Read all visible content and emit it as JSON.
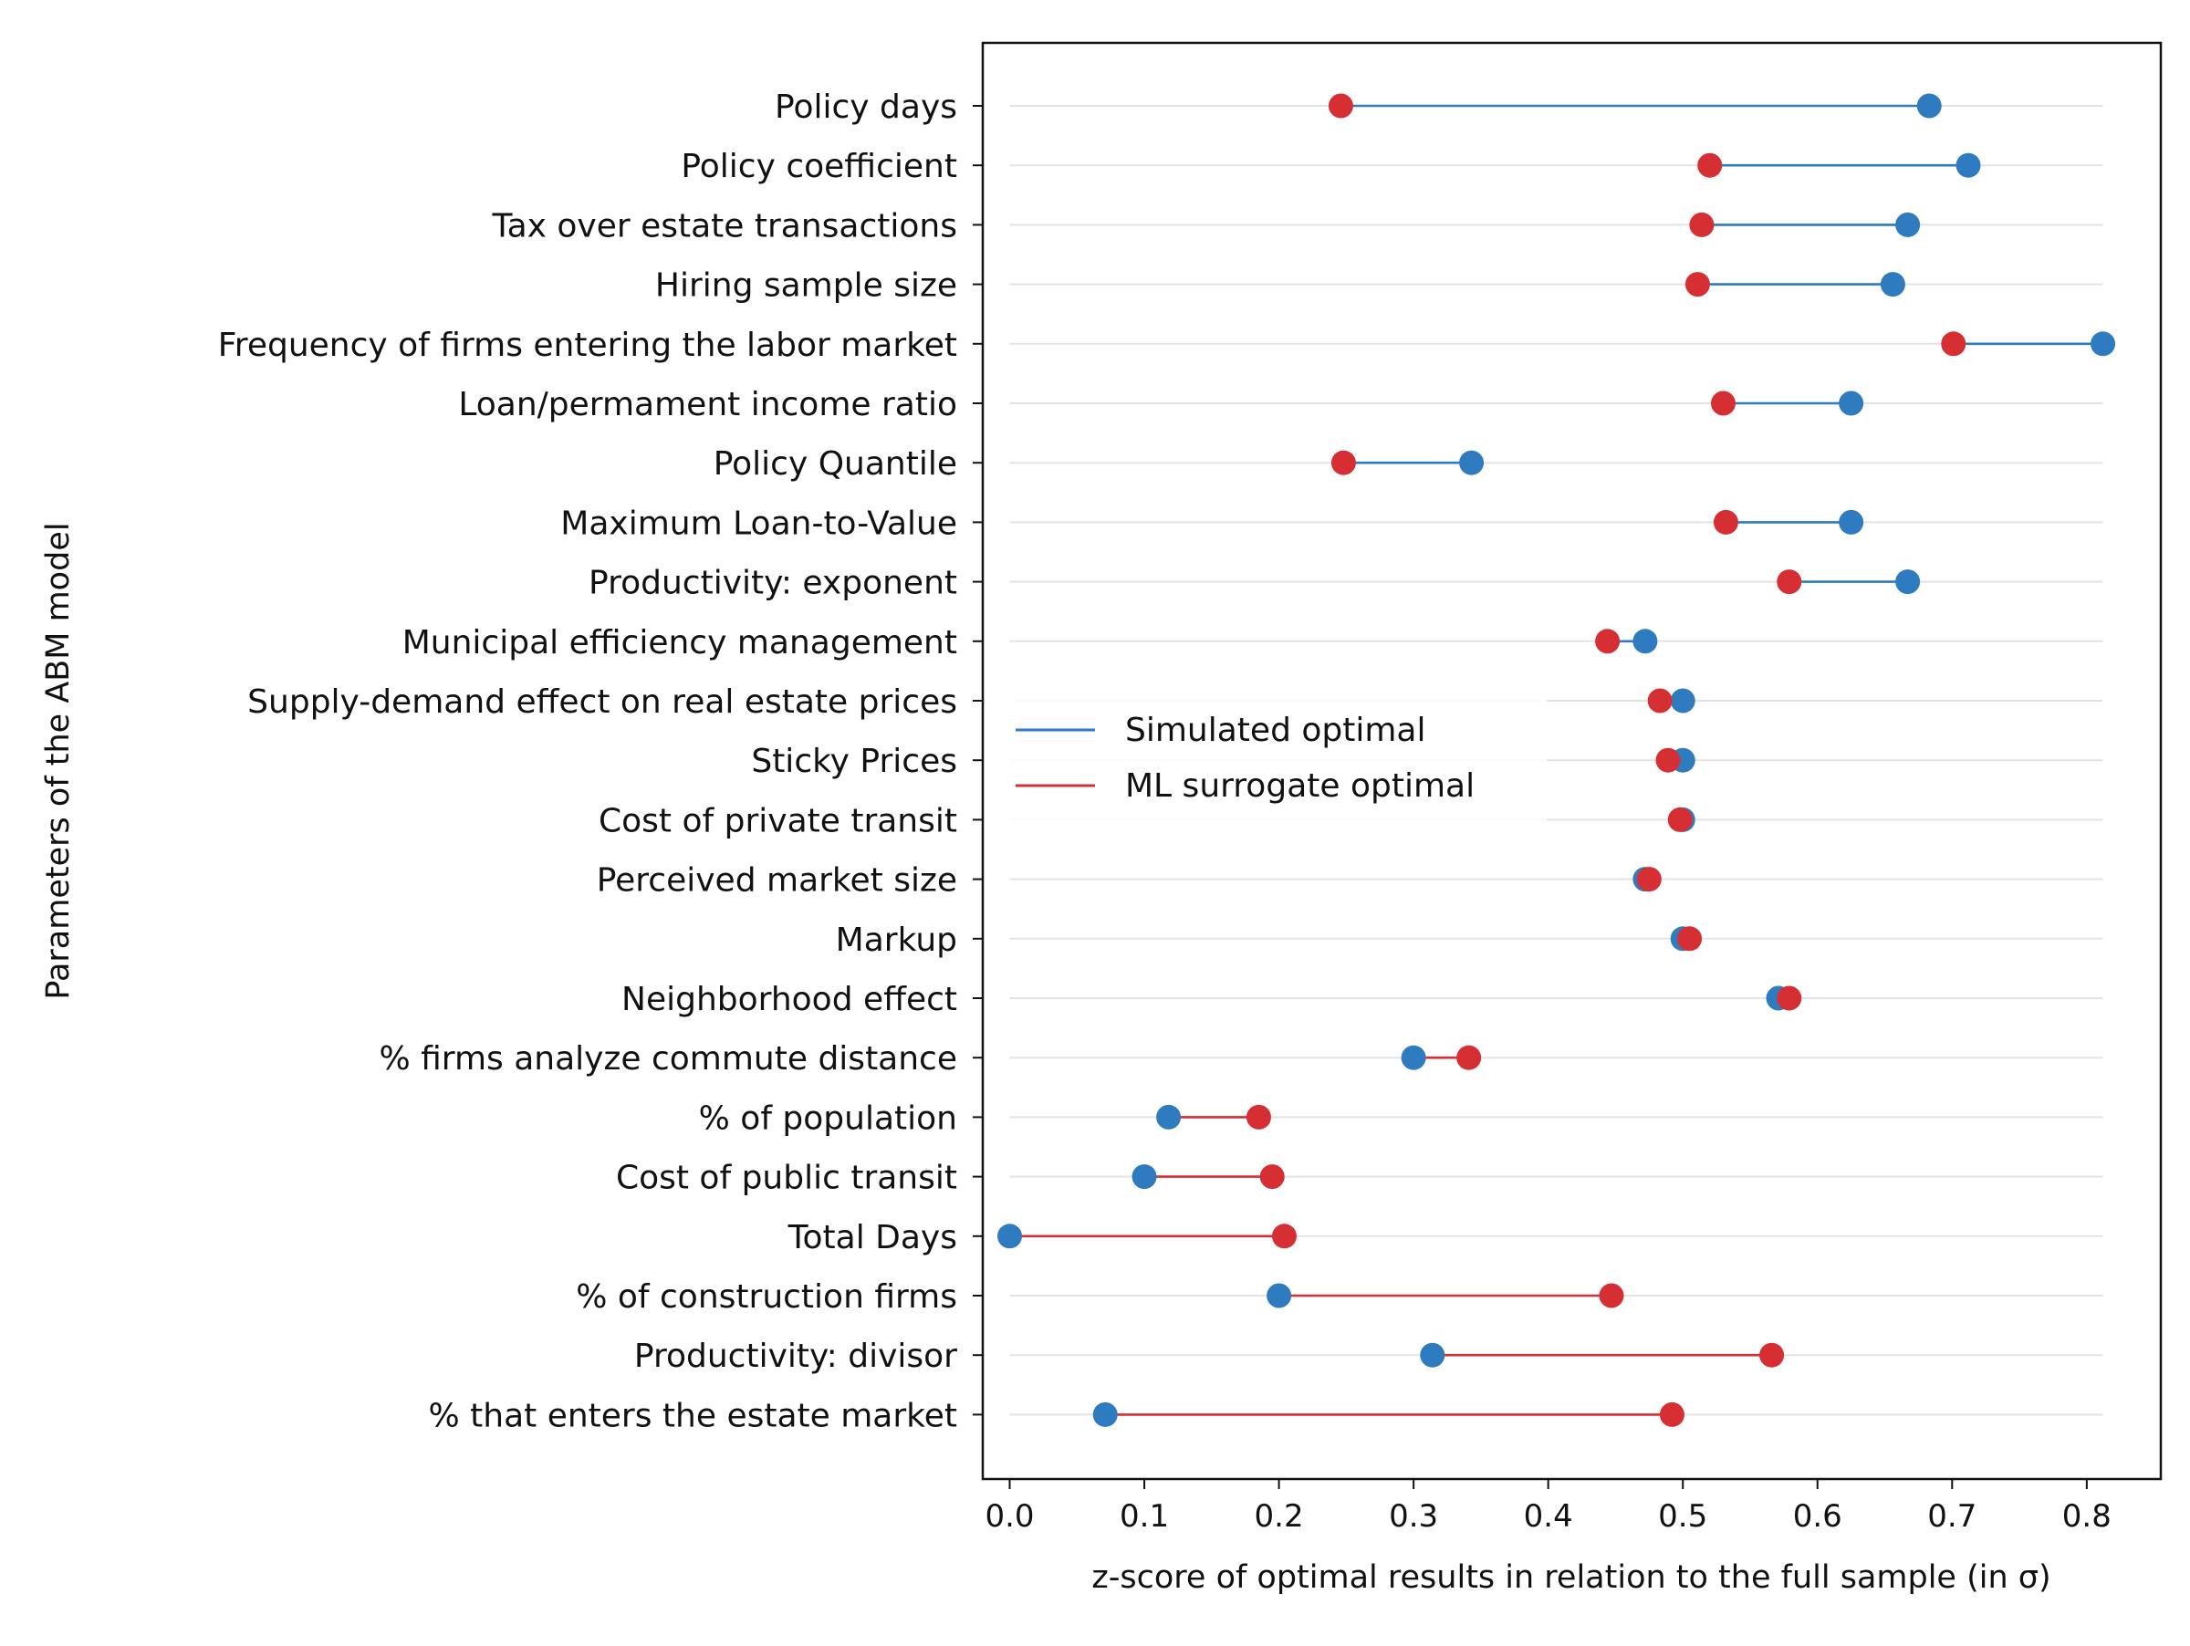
{
  "chart_data": {
    "type": "dumbbell",
    "xlabel": "z-score of optimal results in relation to the full sample (in σ)",
    "ylabel": "Parameters of the ABM model",
    "xlim": [
      -0.02,
      0.855
    ],
    "xticks": [
      0.0,
      0.1,
      0.2,
      0.3,
      0.4,
      0.5,
      0.6,
      0.7,
      0.8
    ],
    "xtick_labels": [
      "0.0",
      "0.1",
      "0.2",
      "0.3",
      "0.4",
      "0.5",
      "0.6",
      "0.7",
      "0.8"
    ],
    "grid": "horizontal lines per category",
    "legend_position": "center-left",
    "categories": [
      "Policy days",
      "Policy coefficient",
      "Tax over estate transactions",
      "Hiring sample size",
      "Frequency of firms entering the labor market",
      "Loan/permament income ratio",
      "Policy Quantile",
      "Maximum Loan-to-Value",
      "Productivity: exponent",
      "Municipal efficiency management",
      "Supply-demand effect on real estate prices",
      "Sticky Prices",
      "Cost of private transit",
      "Perceived market size",
      "Markup",
      "Neighborhood effect",
      "% firms analyze commute distance",
      "% of population",
      "Cost of public transit",
      "Total Days",
      "% of construction firms",
      "Productivity: divisor",
      "% that enters the estate market"
    ],
    "series": [
      {
        "name": "Simulated optimal",
        "color": "#2e7bbf",
        "values": [
          0.683,
          0.712,
          0.667,
          0.656,
          0.812,
          0.625,
          0.343,
          0.625,
          0.667,
          0.472,
          0.5,
          0.5,
          0.5,
          0.472,
          0.5,
          0.571,
          0.3,
          0.118,
          0.1,
          0.0,
          0.2,
          0.314,
          0.071
        ]
      },
      {
        "name": "ML surrogate optimal",
        "color": "#d62f33",
        "values": [
          0.246,
          0.52,
          0.514,
          0.511,
          0.701,
          0.53,
          0.248,
          0.532,
          0.579,
          0.444,
          0.483,
          0.489,
          0.498,
          0.475,
          0.505,
          0.579,
          0.341,
          0.185,
          0.195,
          0.204,
          0.447,
          0.566,
          0.492
        ]
      }
    ]
  }
}
